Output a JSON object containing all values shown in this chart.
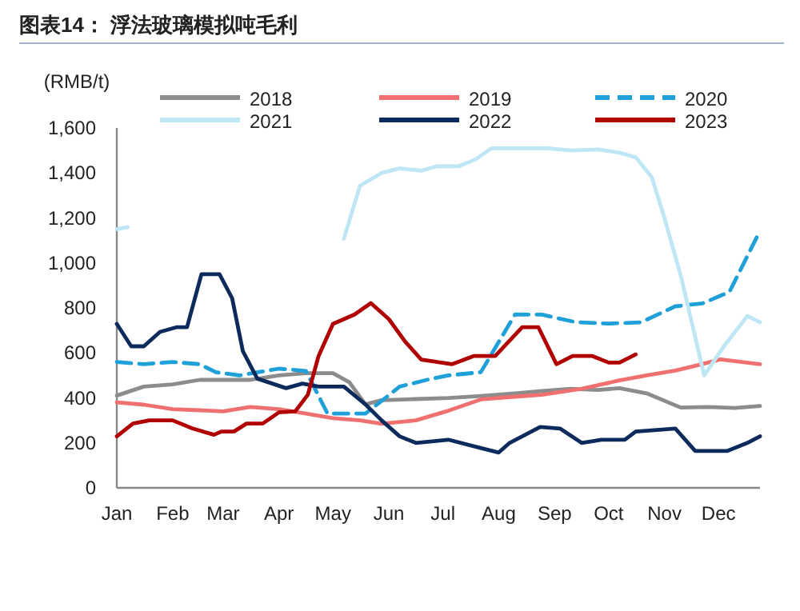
{
  "chart_data": {
    "type": "line",
    "title": "图表14：  浮法玻璃模拟吨毛利",
    "ylabel": "(RMB/t)",
    "xlim": [
      "--01-01",
      "--12-24"
    ],
    "xticks": [
      {
        "value": "--01-01",
        "label": "Jan"
      },
      {
        "value": "--02-01",
        "label": "Feb"
      },
      {
        "value": "--03-01",
        "label": "Mar"
      },
      {
        "value": "--04-01",
        "label": "Apr"
      },
      {
        "value": "--05-01",
        "label": "May"
      },
      {
        "value": "--06-01",
        "label": "Jun"
      },
      {
        "value": "--07-01",
        "label": "Jul"
      },
      {
        "value": "--08-01",
        "label": "Aug"
      },
      {
        "value": "--09-01",
        "label": "Sep"
      },
      {
        "value": "--10-01",
        "label": "Oct"
      },
      {
        "value": "--11-01",
        "label": "Nov"
      },
      {
        "value": "--12-01",
        "label": "Dec"
      }
    ],
    "ylim": [
      0,
      1600
    ],
    "yticks": [
      {
        "value": 0,
        "label": "0"
      },
      {
        "value": 200,
        "label": "200"
      },
      {
        "value": 400,
        "label": "400"
      },
      {
        "value": 600,
        "label": "600"
      },
      {
        "value": 800,
        "label": "800"
      },
      {
        "value": 1000,
        "label": "1,000"
      },
      {
        "value": 1200,
        "label": "1,200"
      },
      {
        "value": 1400,
        "label": "1,400"
      },
      {
        "value": 1600,
        "label": "1,600"
      }
    ],
    "legend": "top",
    "grid": false,
    "marker": "none",
    "series": [
      {
        "name": "2018",
        "color": "#8c8c8c",
        "x": [
          "--01-01",
          "--01-16",
          "--02-01",
          "--02-16",
          "--03-01",
          "--03-16",
          "--04-01",
          "--04-16",
          "--05-01",
          "--05-10",
          "--05-19",
          "--05-28",
          "--06-16",
          "--07-04",
          "--07-19",
          "--08-10",
          "--08-25",
          "--09-10",
          "--09-25",
          "--10-07",
          "--10-22",
          "--11-10",
          "--11-25",
          "--12-10",
          "--12-24"
        ],
        "values": [
          410,
          450,
          460,
          480,
          480,
          480,
          500,
          510,
          510,
          470,
          371,
          390,
          395,
          400,
          407,
          420,
          430,
          440,
          435,
          443,
          420,
          357,
          360,
          355,
          364
        ]
      },
      {
        "name": "2019",
        "color": "#f07070",
        "x": [
          "--01-01",
          "--01-16",
          "--02-01",
          "--02-16",
          "--03-01",
          "--03-16",
          "--04-01",
          "--04-16",
          "--05-01",
          "--05-16",
          "--05-28",
          "--06-16",
          "--07-04",
          "--07-22",
          "--08-10",
          "--08-25",
          "--09-16",
          "--10-07",
          "--10-22",
          "--11-07",
          "--11-19",
          "--12-02",
          "--12-24"
        ],
        "values": [
          380,
          370,
          350,
          345,
          340,
          360,
          350,
          330,
          310,
          300,
          285,
          300,
          343,
          393,
          405,
          414,
          440,
          478,
          500,
          521,
          545,
          571,
          550
        ]
      },
      {
        "name": "2020",
        "color": "#1fa0d8",
        "line_style": "dashed",
        "x": [
          "--01-01",
          "--01-16",
          "--02-01",
          "--02-16",
          "--02-25",
          "--03-10",
          "--04-01",
          "--04-16",
          "--04-28",
          "--05-19",
          "--06-07",
          "--06-22",
          "--07-04",
          "--07-22",
          "--08-10",
          "--08-25",
          "--09-13",
          "--10-01",
          "--10-19",
          "--11-07",
          "--11-22",
          "--12-07",
          "--12-24"
        ],
        "values": [
          560,
          550,
          560,
          550,
          514,
          500,
          530,
          520,
          330,
          330,
          450,
          480,
          500,
          514,
          771,
          770,
          736,
          730,
          736,
          807,
          820,
          871,
          1143
        ]
      },
      {
        "name": "2021",
        "color": "#bfe6f5",
        "x": [
          "--01-01",
          "--01-07",
          "--01-10",
          "--05-07",
          "--05-16",
          "--05-28",
          "--06-07",
          "--06-19",
          "--06-28",
          "--07-10",
          "--07-19",
          "--07-28",
          "--08-13",
          "--08-28",
          "--09-10",
          "--09-25",
          "--10-07",
          "--10-16",
          "--10-25",
          "--11-01",
          "--11-10",
          "--11-23",
          "--12-04",
          "--12-17",
          "--12-24"
        ],
        "values": [
          1150,
          1160,
          null,
          1107,
          1343,
          1400,
          1420,
          1410,
          1430,
          1430,
          1460,
          1510,
          1510,
          1510,
          1500,
          1505,
          1490,
          1470,
          1380,
          1200,
          943,
          500,
          630,
          764,
          736
        ]
      },
      {
        "name": "2022",
        "color": "#0d2a5c",
        "x": [
          "--01-01",
          "--01-09",
          "--01-16",
          "--01-25",
          "--02-03",
          "--02-09",
          "--02-17",
          "--02-27",
          "--03-06",
          "--03-12",
          "--03-20",
          "--04-05",
          "--04-14",
          "--04-23",
          "--05-07",
          "--05-19",
          "--05-28",
          "--06-07",
          "--06-16",
          "--07-04",
          "--07-21",
          "--08-01",
          "--08-07",
          "--08-24",
          "--09-04",
          "--09-16",
          "--09-27",
          "--10-10",
          "--10-16",
          "--11-07",
          "--11-18",
          "--12-06",
          "--12-17",
          "--12-24"
        ],
        "values": [
          729,
          629,
          629,
          693,
          714,
          714,
          950,
          950,
          843,
          607,
          486,
          443,
          464,
          450,
          450,
          371,
          300,
          229,
          200,
          214,
          179,
          157,
          200,
          271,
          264,
          200,
          214,
          214,
          250,
          264,
          164,
          164,
          200,
          229
        ]
      },
      {
        "name": "2023",
        "color": "#b00000",
        "x": [
          "--01-01",
          "--01-10",
          "--01-19",
          "--02-01",
          "--02-12",
          "--02-24",
          "--02-28",
          "--03-07",
          "--03-14",
          "--03-23",
          "--04-01",
          "--04-10",
          "--04-17",
          "--04-23",
          "--05-01",
          "--05-13",
          "--05-22",
          "--06-01",
          "--06-10",
          "--06-19",
          "--07-06",
          "--07-18",
          "--07-30",
          "--08-14",
          "--08-23",
          "--09-02",
          "--09-11",
          "--09-22",
          "--10-01",
          "--10-07",
          "--10-16"
        ],
        "values": [
          229,
          286,
          300,
          300,
          264,
          236,
          250,
          250,
          286,
          286,
          336,
          340,
          414,
          586,
          729,
          771,
          821,
          750,
          650,
          570,
          550,
          586,
          586,
          714,
          714,
          550,
          586,
          586,
          557,
          557,
          593
        ]
      }
    ]
  }
}
